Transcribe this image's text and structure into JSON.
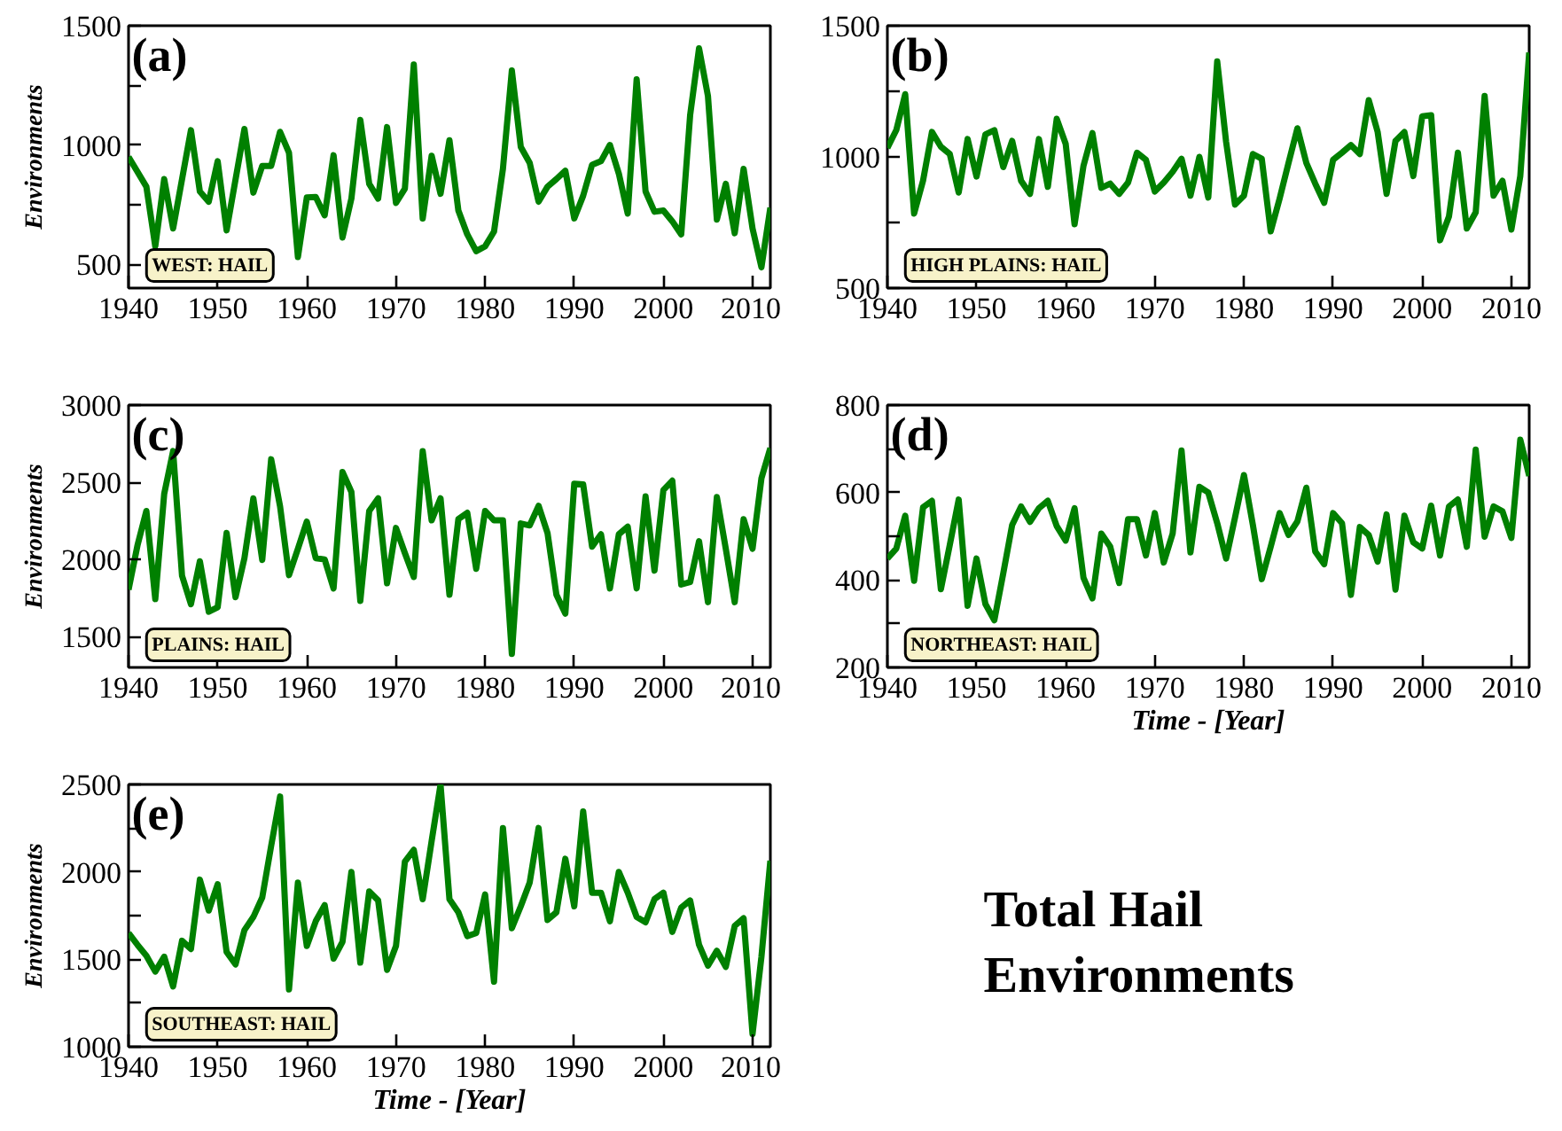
{
  "chart_data": [
    {
      "type": "line",
      "ylabel": "Environments",
      "annotations": [
        "(a)",
        "WEST: HAIL"
      ],
      "xlim": [
        1940,
        2012
      ],
      "ylim": [
        400,
        1500
      ],
      "xticks": [
        1940,
        1950,
        1960,
        1970,
        1980,
        1990,
        2000,
        2010
      ],
      "yticks": [
        500,
        {
          "value": 750,
          "label": null
        },
        1000,
        {
          "value": 1250,
          "label": null
        },
        1500
      ],
      "series": [
        {
          "color": "#008000",
          "x": [
            1940,
            1942,
            1943,
            1944,
            1945,
            1947,
            1948,
            1949,
            1950,
            1951,
            1953,
            1954,
            1955,
            1956,
            1957,
            1958,
            1959,
            1960,
            1961,
            1962,
            1963,
            1964,
            1965,
            1966,
            1967,
            1968,
            1969,
            1970,
            1971,
            1972,
            1973,
            1974,
            1975,
            1976,
            1977,
            1978,
            1979,
            1980,
            1981,
            1982,
            1983,
            1984,
            1985,
            1986,
            1987,
            1988,
            1989,
            1990,
            1991,
            1992,
            1993,
            1994,
            1995,
            1996,
            1997,
            1998,
            1999,
            2000,
            2001,
            2002,
            2003,
            2004,
            2005,
            2006,
            2007,
            2008,
            2009,
            2010,
            2011,
            2012
          ],
          "values": [
            950,
            825,
            575,
            857,
            650,
            1062,
            805,
            762,
            932,
            642,
            1067,
            800,
            912,
            912,
            1055,
            967,
            530,
            780,
            782,
            705,
            957,
            612,
            775,
            1105,
            837,
            775,
            1075,
            757,
            817,
            1337,
            692,
            955,
            795,
            1020,
            725,
            625,
            555,
            575,
            637,
            900,
            1312,
            992,
            925,
            762,
            825,
            857,
            892,
            692,
            787,
            917,
            932,
            1000,
            880,
            712,
            1275,
            805,
            720,
            725,
            680,
            625,
            1125,
            1405,
            1205,
            687,
            837,
            630,
            900,
            650,
            487,
            737
          ]
        }
      ]
    },
    {
      "type": "line",
      "annotations": [
        "(b)",
        "HIGH PLAINS: HAIL"
      ],
      "xlim": [
        1940,
        2012
      ],
      "ylim": [
        500,
        1500
      ],
      "xticks": [
        1940,
        1950,
        1960,
        1970,
        1980,
        1990,
        2000,
        2010
      ],
      "yticks": [
        500,
        {
          "value": 750,
          "label": null
        },
        1000,
        {
          "value": 1250,
          "label": null
        },
        1500
      ],
      "x": [
        1940,
        1941,
        1942,
        1943,
        1944,
        1945,
        1946,
        1947,
        1948,
        1949,
        1950,
        1951,
        1952,
        1953,
        1954,
        1955,
        1956,
        1957,
        1958,
        1959,
        1960,
        1961,
        1962,
        1963,
        1964,
        1965,
        1966,
        1967,
        1968,
        1969,
        1970,
        1971,
        1972,
        1973,
        1974,
        1975,
        1976,
        1977,
        1978,
        1979,
        1980,
        1981,
        1982,
        1983,
        1984,
        1985,
        1986,
        1987,
        1988,
        1989,
        1990,
        1991,
        1992,
        1993,
        1994,
        1995,
        1996,
        1997,
        1998,
        1999,
        2000,
        2001,
        2002,
        2003,
        2004,
        2005,
        2006,
        2007,
        2008,
        2009,
        2010,
        2011,
        2012
      ],
      "series": [
        {
          "color": "#008000",
          "values": [
            1034,
            1102,
            1239,
            784,
            909,
            1095,
            1039,
            1011,
            864,
            1068,
            925,
            1086,
            1102,
            961,
            1061,
            909,
            859,
            1068,
            886,
            1145,
            1050,
            743,
            966,
            1091,
            882,
            898,
            859,
            902,
            1016,
            989,
            868,
            902,
            943,
            993,
            852,
            1000,
            845,
            1364,
            1057,
            818,
            852,
            1011,
            993,
            716,
            841,
            977,
            1109,
            977,
            898,
            825,
            989,
            1016,
            1045,
            1011,
            1216,
            1095,
            859,
            1061,
            1095,
            927,
            1155,
            1159,
            682,
            773,
            1016,
            727,
            789,
            1232,
            852,
            909,
            723,
            927,
            1398
          ]
        }
      ]
    },
    {
      "type": "line",
      "ylabel": "Environments",
      "annotations": [
        "(c)",
        "PLAINS: HAIL"
      ],
      "xlim": [
        1940,
        2012
      ],
      "ylim": [
        1300,
        3000
      ],
      "xticks": [
        1940,
        1950,
        1960,
        1970,
        1980,
        1990,
        2000,
        2010
      ],
      "yticks": [
        1500,
        2000,
        2500,
        3000
      ],
      "x": [
        1940,
        1941,
        1942,
        1943,
        1944,
        1945,
        1946,
        1947,
        1948,
        1949,
        1950,
        1951,
        1952,
        1953,
        1954,
        1955,
        1956,
        1957,
        1958,
        1959,
        1960,
        1961,
        1962,
        1963,
        1964,
        1965,
        1966,
        1967,
        1968,
        1969,
        1970,
        1971,
        1972,
        1973,
        1974,
        1975,
        1976,
        1977,
        1978,
        1979,
        1980,
        1981,
        1982,
        1983,
        1984,
        1985,
        1986,
        1987,
        1988,
        1989,
        1990,
        1991,
        1992,
        1993,
        1994,
        1995,
        1996,
        1997,
        1998,
        1999,
        2000,
        2001,
        2002,
        2003,
        2004,
        2005,
        2006,
        2007,
        2008,
        2009,
        2010,
        2011,
        2012
      ],
      "series": [
        {
          "color": "#008000",
          "values": [
            1804,
            2090,
            2314,
            1743,
            2424,
            2702,
            1894,
            1710,
            1988,
            1661,
            1690,
            2171,
            1755,
            2008,
            2396,
            1996,
            2649,
            2343,
            1898,
            2069,
            2245,
            2008,
            2000,
            1812,
            2567,
            2437,
            1731,
            2314,
            2396,
            1845,
            2204,
            2041,
            1886,
            2702,
            2253,
            2396,
            1771,
            2261,
            2302,
            1939,
            2314,
            2253,
            2253,
            1388,
            2233,
            2220,
            2347,
            2171,
            1771,
            1649,
            2490,
            2486,
            2082,
            2163,
            1812,
            2163,
            2212,
            1812,
            2408,
            1927,
            2449,
            2510,
            1837,
            1853,
            2118,
            1723,
            2404,
            2069,
            1723,
            2261,
            2069,
            2526,
            2722
          ]
        }
      ]
    },
    {
      "type": "line",
      "xlabel": "Time - [Year]",
      "annotations": [
        "(d)",
        "NORTHEAST: HAIL"
      ],
      "xlim": [
        1940,
        2012
      ],
      "ylim": [
        200,
        800
      ],
      "xticks": [
        1940,
        1950,
        1960,
        1970,
        1980,
        1990,
        2000,
        2010
      ],
      "yticks": [
        200,
        {
          "value": 300,
          "label": null
        },
        400,
        {
          "value": 500,
          "label": null
        },
        600,
        {
          "value": 700,
          "label": null
        },
        800
      ],
      "x": [
        1940,
        1941,
        1942,
        1943,
        1944,
        1945,
        1946,
        1947,
        1948,
        1949,
        1950,
        1951,
        1952,
        1953,
        1954,
        1955,
        1956,
        1957,
        1958,
        1959,
        1960,
        1961,
        1962,
        1963,
        1964,
        1965,
        1966,
        1967,
        1968,
        1969,
        1970,
        1971,
        1972,
        1973,
        1974,
        1975,
        1976,
        1977,
        1978,
        1979,
        1980,
        1981,
        1982,
        1983,
        1984,
        1985,
        1986,
        1987,
        1988,
        1989,
        1990,
        1991,
        1992,
        1993,
        1994,
        1995,
        1996,
        1997,
        1998,
        1999,
        2000,
        2001,
        2002,
        2003,
        2004,
        2005,
        2006,
        2007,
        2008,
        2009,
        2010,
        2011,
        2012
      ],
      "series": [
        {
          "color": "#008000",
          "values": [
            449,
            472,
            547,
            398,
            566,
            581,
            379,
            480,
            584,
            341,
            449,
            345,
            308,
            415,
            526,
            568,
            533,
            564,
            581,
            523,
            490,
            564,
            405,
            358,
            506,
            476,
            393,
            539,
            539,
            456,
            553,
            440,
            506,
            696,
            463,
            613,
            600,
            530,
            449,
            543,
            640,
            526,
            402,
            476,
            553,
            503,
            534,
            611,
            465,
            436,
            553,
            530,
            366,
            521,
            503,
            442,
            550,
            378,
            547,
            486,
            472,
            570,
            456,
            568,
            584,
            476,
            698,
            499,
            568,
            557,
            496,
            721,
            638
          ]
        }
      ]
    },
    {
      "type": "line",
      "ylabel": "Environments",
      "xlabel": "Time - [Year]",
      "annotations": [
        "(e)",
        "SOUTHEAST: HAIL"
      ],
      "xlim": [
        1940,
        2012
      ],
      "ylim": [
        1000,
        2500
      ],
      "xticks": [
        1940,
        1950,
        1960,
        1970,
        1980,
        1990,
        2000,
        2010
      ],
      "yticks": [
        1000,
        {
          "value": 1250,
          "label": null
        },
        1500,
        {
          "value": 1750,
          "label": null
        },
        2000,
        {
          "value": 2250,
          "label": null
        },
        2500
      ],
      "x": [
        1940,
        1941,
        1942,
        1943,
        1944,
        1945,
        1946,
        1947,
        1948,
        1949,
        1950,
        1951,
        1952,
        1953,
        1954,
        1955,
        1956,
        1957,
        1958,
        1959,
        1960,
        1961,
        1962,
        1963,
        1964,
        1965,
        1966,
        1967,
        1968,
        1969,
        1970,
        1971,
        1972,
        1973,
        1974,
        1975,
        1976,
        1977,
        1978,
        1979,
        1980,
        1981,
        1982,
        1983,
        1984,
        1985,
        1986,
        1987,
        1988,
        1989,
        1990,
        1991,
        1992,
        1993,
        1994,
        1995,
        1996,
        1997,
        1998,
        1999,
        2000,
        2001,
        2002,
        2003,
        2004,
        2005,
        2006,
        2007,
        2008,
        2009,
        2010,
        2011,
        2012
      ],
      "series": [
        {
          "color": "#008000",
          "values": [
            1650,
            1583,
            1521,
            1430,
            1515,
            1345,
            1606,
            1559,
            1956,
            1779,
            1929,
            1542,
            1471,
            1667,
            1742,
            1854,
            2149,
            2431,
            1328,
            1939,
            1576,
            1718,
            1810,
            1504,
            1600,
            2000,
            1481,
            1888,
            1837,
            1440,
            1576,
            2058,
            2126,
            1844,
            2176,
            2499,
            1844,
            1769,
            1633,
            1650,
            1871,
            1372,
            2251,
            1678,
            1803,
            1939,
            2251,
            1725,
            1769,
            2075,
            1803,
            2346,
            1881,
            1881,
            1718,
            2000,
            1881,
            1742,
            1712,
            1844,
            1881,
            1657,
            1796,
            1837,
            1583,
            1464,
            1549,
            1457,
            1691,
            1735,
            1073,
            1515,
            2064
          ]
        }
      ]
    },
    {
      "type": "other",
      "title": "Total Hail Environments"
    }
  ]
}
